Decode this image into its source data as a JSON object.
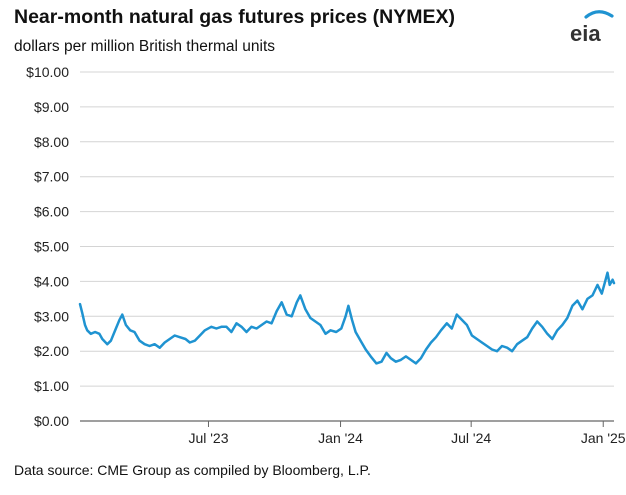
{
  "chart_data": {
    "type": "line",
    "title": "Near-month natural gas futures prices (NYMEX)",
    "subtitle": "dollars per million British thermal units",
    "source": "Data source: CME Group as compiled by Bloomberg, L.P.",
    "xlabel": "",
    "ylabel": "",
    "ylim": [
      0,
      10
    ],
    "y_ticks": [
      "$0.00",
      "$1.00",
      "$2.00",
      "$3.00",
      "$4.00",
      "$5.00",
      "$6.00",
      "$7.00",
      "$8.00",
      "$9.00",
      "$10.00"
    ],
    "x_ticks": [
      {
        "date": "2023-07-01",
        "label": "Jul '23"
      },
      {
        "date": "2024-01-01",
        "label": "Jan '24"
      },
      {
        "date": "2024-07-01",
        "label": "Jul '24"
      },
      {
        "date": "2025-01-01",
        "label": "Jan '25"
      }
    ],
    "x_range": [
      "2023-01-03",
      "2025-01-16"
    ],
    "grid": "horizontal",
    "line_color": "#1f93d1",
    "series": [
      {
        "name": "",
        "points": [
          [
            "2023-01-03",
            3.35
          ],
          [
            "2023-01-06",
            3.1
          ],
          [
            "2023-01-10",
            2.75
          ],
          [
            "2023-01-13",
            2.6
          ],
          [
            "2023-01-18",
            2.5
          ],
          [
            "2023-01-24",
            2.55
          ],
          [
            "2023-01-30",
            2.5
          ],
          [
            "2023-02-03",
            2.35
          ],
          [
            "2023-02-10",
            2.2
          ],
          [
            "2023-02-15",
            2.3
          ],
          [
            "2023-02-22",
            2.65
          ],
          [
            "2023-02-27",
            2.9
          ],
          [
            "2023-03-03",
            3.05
          ],
          [
            "2023-03-08",
            2.75
          ],
          [
            "2023-03-14",
            2.6
          ],
          [
            "2023-03-20",
            2.55
          ],
          [
            "2023-03-27",
            2.3
          ],
          [
            "2023-04-03",
            2.2
          ],
          [
            "2023-04-10",
            2.15
          ],
          [
            "2023-04-17",
            2.2
          ],
          [
            "2023-04-24",
            2.1
          ],
          [
            "2023-05-01",
            2.25
          ],
          [
            "2023-05-08",
            2.35
          ],
          [
            "2023-05-15",
            2.45
          ],
          [
            "2023-05-22",
            2.4
          ],
          [
            "2023-05-30",
            2.35
          ],
          [
            "2023-06-05",
            2.25
          ],
          [
            "2023-06-12",
            2.3
          ],
          [
            "2023-06-19",
            2.45
          ],
          [
            "2023-06-26",
            2.6
          ],
          [
            "2023-07-05",
            2.7
          ],
          [
            "2023-07-12",
            2.65
          ],
          [
            "2023-07-19",
            2.7
          ],
          [
            "2023-07-26",
            2.7
          ],
          [
            "2023-08-02",
            2.55
          ],
          [
            "2023-08-09",
            2.8
          ],
          [
            "2023-08-16",
            2.7
          ],
          [
            "2023-08-23",
            2.55
          ],
          [
            "2023-08-30",
            2.7
          ],
          [
            "2023-09-06",
            2.65
          ],
          [
            "2023-09-13",
            2.75
          ],
          [
            "2023-09-20",
            2.85
          ],
          [
            "2023-09-27",
            2.8
          ],
          [
            "2023-10-04",
            3.15
          ],
          [
            "2023-10-11",
            3.4
          ],
          [
            "2023-10-18",
            3.05
          ],
          [
            "2023-10-25",
            3.0
          ],
          [
            "2023-11-01",
            3.4
          ],
          [
            "2023-11-06",
            3.6
          ],
          [
            "2023-11-13",
            3.2
          ],
          [
            "2023-11-20",
            2.95
          ],
          [
            "2023-11-27",
            2.85
          ],
          [
            "2023-12-04",
            2.75
          ],
          [
            "2023-12-11",
            2.5
          ],
          [
            "2023-12-18",
            2.6
          ],
          [
            "2023-12-26",
            2.55
          ],
          [
            "2024-01-02",
            2.65
          ],
          [
            "2024-01-08",
            3.0
          ],
          [
            "2024-01-12",
            3.3
          ],
          [
            "2024-01-17",
            2.9
          ],
          [
            "2024-01-22",
            2.55
          ],
          [
            "2024-01-29",
            2.3
          ],
          [
            "2024-02-05",
            2.05
          ],
          [
            "2024-02-12",
            1.85
          ],
          [
            "2024-02-20",
            1.65
          ],
          [
            "2024-02-27",
            1.7
          ],
          [
            "2024-03-05",
            1.95
          ],
          [
            "2024-03-11",
            1.8
          ],
          [
            "2024-03-18",
            1.7
          ],
          [
            "2024-03-25",
            1.75
          ],
          [
            "2024-04-01",
            1.85
          ],
          [
            "2024-04-08",
            1.75
          ],
          [
            "2024-04-15",
            1.65
          ],
          [
            "2024-04-22",
            1.8
          ],
          [
            "2024-04-29",
            2.05
          ],
          [
            "2024-05-06",
            2.25
          ],
          [
            "2024-05-13",
            2.4
          ],
          [
            "2024-05-20",
            2.6
          ],
          [
            "2024-05-28",
            2.8
          ],
          [
            "2024-06-04",
            2.65
          ],
          [
            "2024-06-11",
            3.05
          ],
          [
            "2024-06-18",
            2.9
          ],
          [
            "2024-06-25",
            2.75
          ],
          [
            "2024-07-02",
            2.45
          ],
          [
            "2024-07-09",
            2.35
          ],
          [
            "2024-07-16",
            2.25
          ],
          [
            "2024-07-23",
            2.15
          ],
          [
            "2024-07-30",
            2.05
          ],
          [
            "2024-08-06",
            2.0
          ],
          [
            "2024-08-13",
            2.15
          ],
          [
            "2024-08-20",
            2.1
          ],
          [
            "2024-08-27",
            2.0
          ],
          [
            "2024-09-03",
            2.2
          ],
          [
            "2024-09-10",
            2.3
          ],
          [
            "2024-09-17",
            2.4
          ],
          [
            "2024-09-24",
            2.65
          ],
          [
            "2024-10-01",
            2.85
          ],
          [
            "2024-10-08",
            2.7
          ],
          [
            "2024-10-15",
            2.5
          ],
          [
            "2024-10-22",
            2.35
          ],
          [
            "2024-10-29",
            2.6
          ],
          [
            "2024-11-05",
            2.75
          ],
          [
            "2024-11-12",
            2.95
          ],
          [
            "2024-11-19",
            3.3
          ],
          [
            "2024-11-26",
            3.45
          ],
          [
            "2024-12-03",
            3.2
          ],
          [
            "2024-12-10",
            3.5
          ],
          [
            "2024-12-17",
            3.6
          ],
          [
            "2024-12-24",
            3.9
          ],
          [
            "2024-12-30",
            3.65
          ],
          [
            "2025-01-03",
            3.95
          ],
          [
            "2025-01-07",
            4.25
          ],
          [
            "2025-01-10",
            3.9
          ],
          [
            "2025-01-14",
            4.05
          ],
          [
            "2025-01-16",
            3.95
          ]
        ]
      }
    ]
  }
}
